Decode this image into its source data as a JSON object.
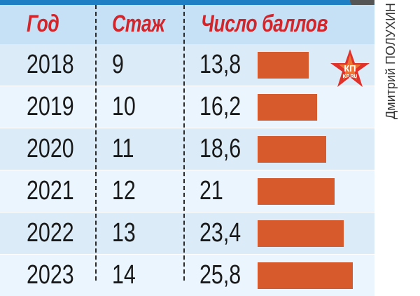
{
  "table": {
    "headers": [
      "Год",
      "Стаж",
      "Число баллов"
    ],
    "rows": [
      {
        "year": "2018",
        "experience": "9",
        "points": "13,8",
        "value": 13.8
      },
      {
        "year": "2019",
        "experience": "10",
        "points": "16,2",
        "value": 16.2
      },
      {
        "year": "2020",
        "experience": "11",
        "points": "18,6",
        "value": 18.6
      },
      {
        "year": "2021",
        "experience": "12",
        "points": "21",
        "value": 21
      },
      {
        "year": "2022",
        "experience": "13",
        "points": "23,4",
        "value": 23.4
      },
      {
        "year": "2023",
        "experience": "14",
        "points": "25,8",
        "value": 25.8
      }
    ]
  },
  "credit": "Дмитрий ПОЛУХИН",
  "logo_text": "КП KP.RU",
  "colors": {
    "header_text": "#d0262c",
    "bar": "#d75a2d",
    "header_bg": "#c6e1f5",
    "topbar": "#1e7fc4"
  }
}
